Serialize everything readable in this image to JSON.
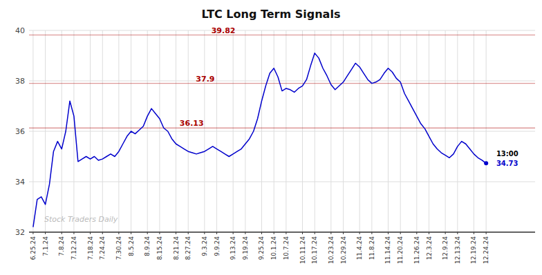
{
  "chart_data": {
    "type": "line",
    "title": "LTC Long Term Signals",
    "categories": [
      "6.25.24",
      null,
      null,
      "7.1.24",
      null,
      null,
      null,
      "7.8.24",
      null,
      null,
      "7.12.24",
      null,
      null,
      null,
      "7.18.24",
      null,
      null,
      "7.24.24",
      null,
      null,
      null,
      "7.30.24",
      null,
      null,
      "8.5.24",
      null,
      null,
      null,
      "8.9.24",
      null,
      null,
      "8.15.24",
      null,
      null,
      null,
      "8.21.24",
      null,
      null,
      "8.27.24",
      null,
      null,
      null,
      "9.3.24",
      null,
      null,
      "9.9.24",
      null,
      null,
      null,
      "9.13.24",
      null,
      null,
      "9.19.24",
      null,
      null,
      null,
      "9.25.24",
      null,
      null,
      "10.1.24",
      null,
      null,
      "10.7.24",
      null,
      null,
      null,
      "10.11.24",
      null,
      null,
      "10.17.24",
      null,
      null,
      null,
      "10.23.24",
      null,
      null,
      "10.29.24",
      null,
      null,
      null,
      "11.4.24",
      null,
      null,
      "11.8.24",
      null,
      null,
      null,
      "11.14.24",
      null,
      null,
      "11.20.24",
      null,
      null,
      null,
      "11.26.24",
      null,
      null,
      "12.3.24",
      null,
      null,
      null,
      "12.9.24",
      null,
      null,
      "12.13.24",
      null,
      null,
      null,
      "12.19.24",
      null,
      null,
      "12.24.24"
    ],
    "values": [
      32.2,
      33.3,
      33.4,
      33.1,
      33.9,
      35.2,
      35.6,
      35.3,
      36.0,
      37.2,
      36.6,
      34.8,
      34.9,
      35.0,
      34.9,
      35.0,
      34.85,
      34.9,
      35.0,
      35.1,
      35.0,
      35.2,
      35.5,
      35.8,
      36.0,
      35.9,
      36.05,
      36.2,
      36.6,
      36.9,
      36.7,
      36.5,
      36.13,
      36.0,
      35.7,
      35.5,
      35.4,
      35.3,
      35.2,
      35.15,
      35.1,
      35.15,
      35.2,
      35.3,
      35.4,
      35.3,
      35.2,
      35.1,
      35.0,
      35.1,
      35.2,
      35.3,
      35.5,
      35.7,
      36.0,
      36.5,
      37.2,
      37.8,
      38.3,
      38.5,
      38.15,
      37.6,
      37.7,
      37.65,
      37.55,
      37.7,
      37.8,
      38.05,
      38.6,
      39.1,
      38.9,
      38.5,
      38.2,
      37.85,
      37.65,
      37.8,
      37.95,
      38.2,
      38.45,
      38.7,
      38.55,
      38.3,
      38.05,
      37.9,
      37.95,
      38.05,
      38.3,
      38.5,
      38.35,
      38.1,
      37.95,
      37.5,
      37.2,
      36.9,
      36.6,
      36.3,
      36.1,
      35.8,
      35.5,
      35.3,
      35.15,
      35.05,
      34.95,
      35.1,
      35.4,
      35.6,
      35.5,
      35.3,
      35.1,
      34.95,
      34.85,
      34.73
    ],
    "color": "#0000cc",
    "ylim": [
      32,
      40
    ],
    "yticks": [
      32,
      34,
      36,
      38,
      40
    ],
    "grid": true,
    "hlines": [
      {
        "value": 39.82,
        "color": "#aa0000"
      },
      {
        "value": 37.9,
        "color": "#aa0000"
      },
      {
        "value": 36.13,
        "color": "#aa0000"
      }
    ],
    "watermark": "Stock Traders Daily",
    "last_time": "13:00"
  }
}
